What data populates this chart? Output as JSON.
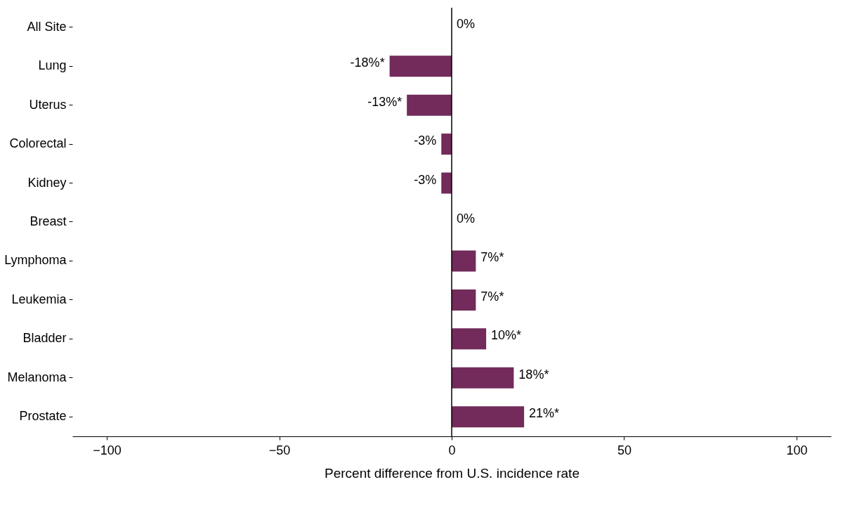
{
  "chart_data": {
    "type": "bar",
    "orientation": "horizontal",
    "xlabel": "Percent difference from U.S. incidence rate",
    "categories": [
      "All Site",
      "Lung",
      "Uterus",
      "Colorectal",
      "Kidney",
      "Breast",
      "Lymphoma",
      "Leukemia",
      "Bladder",
      "Melanoma",
      "Prostate"
    ],
    "values": [
      0,
      -18,
      -13,
      -3,
      -3,
      0,
      7,
      7,
      10,
      18,
      21
    ],
    "value_labels": [
      "0%",
      "-18%*",
      "-13%*",
      "-3%",
      "-3%",
      "0%",
      "7%*",
      "7%*",
      "10%*",
      "18%*",
      "21%*"
    ],
    "color": "#722b5a",
    "xlim": [
      -110,
      110
    ],
    "xticks": [
      -100,
      -50,
      0,
      50,
      100
    ],
    "ref_lines": [
      {
        "axis": "x",
        "value": 0,
        "color": "#000000"
      }
    ]
  }
}
